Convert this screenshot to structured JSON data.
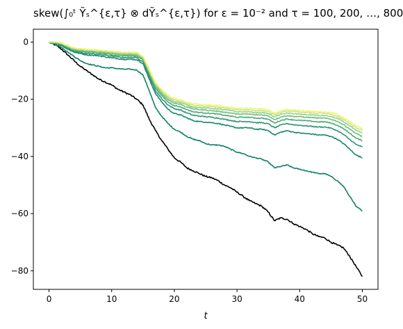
{
  "chart_data": {
    "type": "line",
    "title": "skew(∫₀ᵗ Ỹₛ^{ε,τ} ⊗ dỸₛ^{ε,τ}) for ε = 10⁻² and τ = 100, 200, …, 800",
    "xlabel": "t",
    "ylabel": "",
    "xlim": [
      -2.5,
      52.5
    ],
    "ylim": [
      -86.5,
      4.5
    ],
    "xticks": [
      0,
      10,
      20,
      30,
      40,
      50
    ],
    "yticks": [
      0,
      -20,
      -40,
      -60,
      -80
    ],
    "grid": false,
    "legend": "none",
    "colors": [
      "#000000",
      "#0f7f68",
      "#16876a",
      "#2e9570",
      "#4fa877",
      "#74bc7f",
      "#9ad088",
      "#c5e58f",
      "#f1f56a"
    ],
    "series": [
      {
        "color": "#000000",
        "x": [
          0,
          1,
          2,
          3,
          4,
          5,
          6,
          7,
          8,
          9,
          10,
          11,
          12,
          13,
          14,
          15,
          16,
          17,
          18,
          19,
          20,
          21,
          22,
          23,
          24,
          25,
          26,
          27,
          28,
          29,
          30,
          31,
          32,
          33,
          34,
          35,
          36,
          37,
          38,
          39,
          40,
          41,
          42,
          43,
          44,
          45,
          46,
          47,
          48,
          49,
          50
        ],
        "y": [
          0,
          -1,
          -2.5,
          -4.5,
          -6.5,
          -8.5,
          -10,
          -11.5,
          -13,
          -14,
          -15,
          -16.5,
          -17.5,
          -18.5,
          -20,
          -22,
          -27,
          -31,
          -34.5,
          -37.5,
          -40.5,
          -42,
          -44,
          -45,
          -46,
          -47,
          -47.5,
          -48.5,
          -50,
          -51,
          -52.5,
          -54,
          -55.5,
          -56.5,
          -57.5,
          -59.5,
          -62.5,
          -61.5,
          -62,
          -63.5,
          -64.5,
          -65.5,
          -67,
          -68,
          -68.5,
          -70,
          -71,
          -72,
          -75,
          -78.5,
          -82
        ]
      },
      {
        "color": "#0f7f68",
        "x": [
          0,
          1,
          2,
          3,
          4,
          5,
          6,
          7,
          8,
          9,
          10,
          11,
          12,
          13,
          14,
          15,
          16,
          17,
          18,
          19,
          20,
          21,
          22,
          23,
          24,
          25,
          26,
          27,
          28,
          29,
          30,
          31,
          32,
          33,
          34,
          35,
          36,
          37,
          38,
          39,
          40,
          41,
          42,
          43,
          44,
          45,
          46,
          47,
          48,
          49,
          50
        ],
        "y": [
          0,
          -0.8,
          -1.8,
          -3.5,
          -5,
          -6.5,
          -7.5,
          -8,
          -8.5,
          -9,
          -9,
          -9.3,
          -9.5,
          -9.5,
          -9.8,
          -11.5,
          -17,
          -23,
          -26,
          -28.5,
          -30.5,
          -31.5,
          -33,
          -34,
          -34.5,
          -35.5,
          -36,
          -36,
          -36.5,
          -37.5,
          -38.5,
          -39,
          -40,
          -40.5,
          -41,
          -42,
          -44,
          -43.5,
          -43,
          -44,
          -44.5,
          -45,
          -45.5,
          -46,
          -46,
          -47,
          -48.5,
          -50.5,
          -54,
          -57.5,
          -59
        ]
      },
      {
        "color": "#16876a",
        "x": [
          0,
          1,
          2,
          3,
          4,
          5,
          6,
          7,
          8,
          9,
          10,
          11,
          12,
          13,
          14,
          15,
          16,
          17,
          18,
          19,
          20,
          21,
          22,
          23,
          24,
          25,
          26,
          27,
          28,
          29,
          30,
          31,
          32,
          33,
          34,
          35,
          36,
          37,
          38,
          39,
          40,
          41,
          42,
          43,
          44,
          45,
          46,
          47,
          48,
          49,
          50
        ],
        "y": [
          0,
          -0.5,
          -1.2,
          -2.5,
          -3.5,
          -4,
          -4.5,
          -4.6,
          -4.8,
          -5.2,
          -5.5,
          -5.8,
          -6,
          -6,
          -6.2,
          -7.5,
          -13,
          -18,
          -21,
          -23.5,
          -25,
          -25.5,
          -26.5,
          -27.5,
          -27.8,
          -28,
          -28.2,
          -28.5,
          -29,
          -29.5,
          -30,
          -30,
          -30,
          -30.5,
          -30.5,
          -31,
          -32.5,
          -31.5,
          -31,
          -31.5,
          -31.8,
          -32,
          -32.2,
          -32.5,
          -32.5,
          -33,
          -34,
          -35.5,
          -37.5,
          -39.5,
          -40.5
        ]
      },
      {
        "color": "#2e9570",
        "x": [
          0,
          1,
          2,
          3,
          4,
          5,
          6,
          7,
          8,
          9,
          10,
          11,
          12,
          13,
          14,
          15,
          16,
          17,
          18,
          19,
          20,
          21,
          22,
          23,
          24,
          25,
          26,
          27,
          28,
          29,
          30,
          31,
          32,
          33,
          34,
          35,
          36,
          37,
          38,
          39,
          40,
          41,
          42,
          43,
          44,
          45,
          46,
          47,
          48,
          49,
          50
        ],
        "y": [
          0,
          -0.4,
          -1,
          -2.2,
          -3.2,
          -3.6,
          -4,
          -4.1,
          -4.3,
          -4.6,
          -4.9,
          -5.2,
          -5.4,
          -5.4,
          -5.5,
          -6.8,
          -12,
          -17,
          -19.8,
          -22,
          -23.3,
          -23.8,
          -24.8,
          -25.6,
          -25.9,
          -26.1,
          -26.3,
          -26.6,
          -27,
          -27.4,
          -27.8,
          -27.8,
          -27.8,
          -28.2,
          -28.2,
          -28.6,
          -30,
          -29,
          -28.5,
          -28.9,
          -29.1,
          -29.3,
          -29.5,
          -29.7,
          -29.7,
          -30.1,
          -31,
          -32.3,
          -34.1,
          -35.8,
          -36.7
        ]
      },
      {
        "color": "#4fa877",
        "x": [
          0,
          1,
          2,
          3,
          4,
          5,
          6,
          7,
          8,
          9,
          10,
          11,
          12,
          13,
          14,
          15,
          16,
          17,
          18,
          19,
          20,
          21,
          22,
          23,
          24,
          25,
          26,
          27,
          28,
          29,
          30,
          31,
          32,
          33,
          34,
          35,
          36,
          37,
          38,
          39,
          40,
          41,
          42,
          43,
          44,
          45,
          46,
          47,
          48,
          49,
          50
        ],
        "y": [
          0,
          -0.3,
          -0.8,
          -1.9,
          -2.9,
          -3.2,
          -3.5,
          -3.6,
          -3.8,
          -4.1,
          -4.4,
          -4.6,
          -4.8,
          -4.8,
          -4.9,
          -6.2,
          -11.2,
          -16.1,
          -18.8,
          -21,
          -22.2,
          -22.7,
          -23.6,
          -24.4,
          -24.6,
          -24.8,
          -25,
          -25.2,
          -25.6,
          -25.9,
          -26.3,
          -26.3,
          -26.3,
          -26.6,
          -26.6,
          -27,
          -28.3,
          -27.4,
          -26.9,
          -27.2,
          -27.4,
          -27.5,
          -27.7,
          -27.9,
          -27.9,
          -28.3,
          -29.1,
          -30.3,
          -31.9,
          -33.6,
          -34.5
        ]
      },
      {
        "color": "#74bc7f",
        "x": [
          0,
          1,
          2,
          3,
          4,
          5,
          6,
          7,
          8,
          9,
          10,
          11,
          12,
          13,
          14,
          15,
          16,
          17,
          18,
          19,
          20,
          21,
          22,
          23,
          24,
          25,
          26,
          27,
          28,
          29,
          30,
          31,
          32,
          33,
          34,
          35,
          36,
          37,
          38,
          39,
          40,
          41,
          42,
          43,
          44,
          45,
          46,
          47,
          48,
          49,
          50
        ],
        "y": [
          0,
          -0.2,
          -0.6,
          -1.7,
          -2.6,
          -2.9,
          -3.2,
          -3.3,
          -3.5,
          -3.7,
          -4,
          -4.2,
          -4.4,
          -4.4,
          -4.5,
          -5.8,
          -10.7,
          -15.5,
          -18.1,
          -20.2,
          -21.4,
          -21.8,
          -22.7,
          -23.4,
          -23.6,
          -23.8,
          -24,
          -24.2,
          -24.5,
          -24.8,
          -25.2,
          -25.2,
          -25.2,
          -25.5,
          -25.5,
          -25.8,
          -27.1,
          -26.2,
          -25.7,
          -26,
          -26.1,
          -26.3,
          -26.4,
          -26.6,
          -26.6,
          -27,
          -27.7,
          -28.9,
          -30.4,
          -32,
          -33
        ]
      },
      {
        "color": "#9ad088",
        "x": [
          0,
          1,
          2,
          3,
          4,
          5,
          6,
          7,
          8,
          9,
          10,
          11,
          12,
          13,
          14,
          15,
          16,
          17,
          18,
          19,
          20,
          21,
          22,
          23,
          24,
          25,
          26,
          27,
          28,
          29,
          30,
          31,
          32,
          33,
          34,
          35,
          36,
          37,
          38,
          39,
          40,
          41,
          42,
          43,
          44,
          45,
          46,
          47,
          48,
          49,
          50
        ],
        "y": [
          0,
          -0.1,
          -0.5,
          -1.5,
          -2.4,
          -2.7,
          -2.9,
          -3,
          -3.2,
          -3.4,
          -3.7,
          -3.9,
          -4.1,
          -4.1,
          -4.2,
          -5.5,
          -10.3,
          -15,
          -17.6,
          -19.6,
          -20.8,
          -21.2,
          -22,
          -22.7,
          -22.9,
          -23.1,
          -23.2,
          -23.4,
          -23.7,
          -24,
          -24.4,
          -24.4,
          -24.4,
          -24.7,
          -24.7,
          -25,
          -26.2,
          -25.3,
          -24.8,
          -25.1,
          -25.2,
          -25.4,
          -25.5,
          -25.7,
          -25.7,
          -26.1,
          -26.7,
          -27.9,
          -29.3,
          -30.9,
          -31.8
        ]
      },
      {
        "color": "#c5e58f",
        "x": [
          0,
          1,
          2,
          3,
          4,
          5,
          6,
          7,
          8,
          9,
          10,
          11,
          12,
          13,
          14,
          15,
          16,
          17,
          18,
          19,
          20,
          21,
          22,
          23,
          24,
          25,
          26,
          27,
          28,
          29,
          30,
          31,
          32,
          33,
          34,
          35,
          36,
          37,
          38,
          39,
          40,
          41,
          42,
          43,
          44,
          45,
          46,
          47,
          48,
          49,
          50
        ],
        "y": [
          0,
          0,
          -0.4,
          -1.4,
          -2.2,
          -2.5,
          -2.7,
          -2.8,
          -3,
          -3.2,
          -3.4,
          -3.6,
          -3.8,
          -3.8,
          -3.9,
          -5.2,
          -9.9,
          -14.6,
          -17.1,
          -19.1,
          -20.3,
          -20.7,
          -21.5,
          -22.1,
          -22.3,
          -22.5,
          -22.6,
          -22.8,
          -23.1,
          -23.4,
          -23.7,
          -23.7,
          -23.7,
          -24,
          -24,
          -24.3,
          -25.5,
          -24.6,
          -24.1,
          -24.3,
          -24.5,
          -24.6,
          -24.8,
          -24.9,
          -24.9,
          -25.3,
          -26,
          -27.1,
          -28.5,
          -30,
          -30.9
        ]
      },
      {
        "color": "#f1f56a",
        "x": [
          0,
          1,
          2,
          3,
          4,
          5,
          6,
          7,
          8,
          9,
          10,
          11,
          12,
          13,
          14,
          15,
          16,
          17,
          18,
          19,
          20,
          21,
          22,
          23,
          24,
          25,
          26,
          27,
          28,
          29,
          30,
          31,
          32,
          33,
          34,
          35,
          36,
          37,
          38,
          39,
          40,
          41,
          42,
          43,
          44,
          45,
          46,
          47,
          48,
          49,
          50
        ],
        "y": [
          0,
          0.1,
          -0.3,
          -1.2,
          -2,
          -2.3,
          -2.5,
          -2.6,
          -2.8,
          -3,
          -3.2,
          -3.4,
          -3.6,
          -3.6,
          -3.7,
          -5,
          -9.6,
          -14.2,
          -16.7,
          -18.6,
          -19.8,
          -20.2,
          -21,
          -21.6,
          -21.8,
          -22,
          -22.1,
          -22.3,
          -22.6,
          -22.8,
          -23.2,
          -23.2,
          -23.2,
          -23.4,
          -23.4,
          -23.7,
          -24.9,
          -24,
          -23.5,
          -23.8,
          -23.9,
          -24.1,
          -24.2,
          -24.4,
          -24.4,
          -24.7,
          -25.4,
          -26.5,
          -27.8,
          -29.3,
          -30.2
        ]
      }
    ]
  }
}
